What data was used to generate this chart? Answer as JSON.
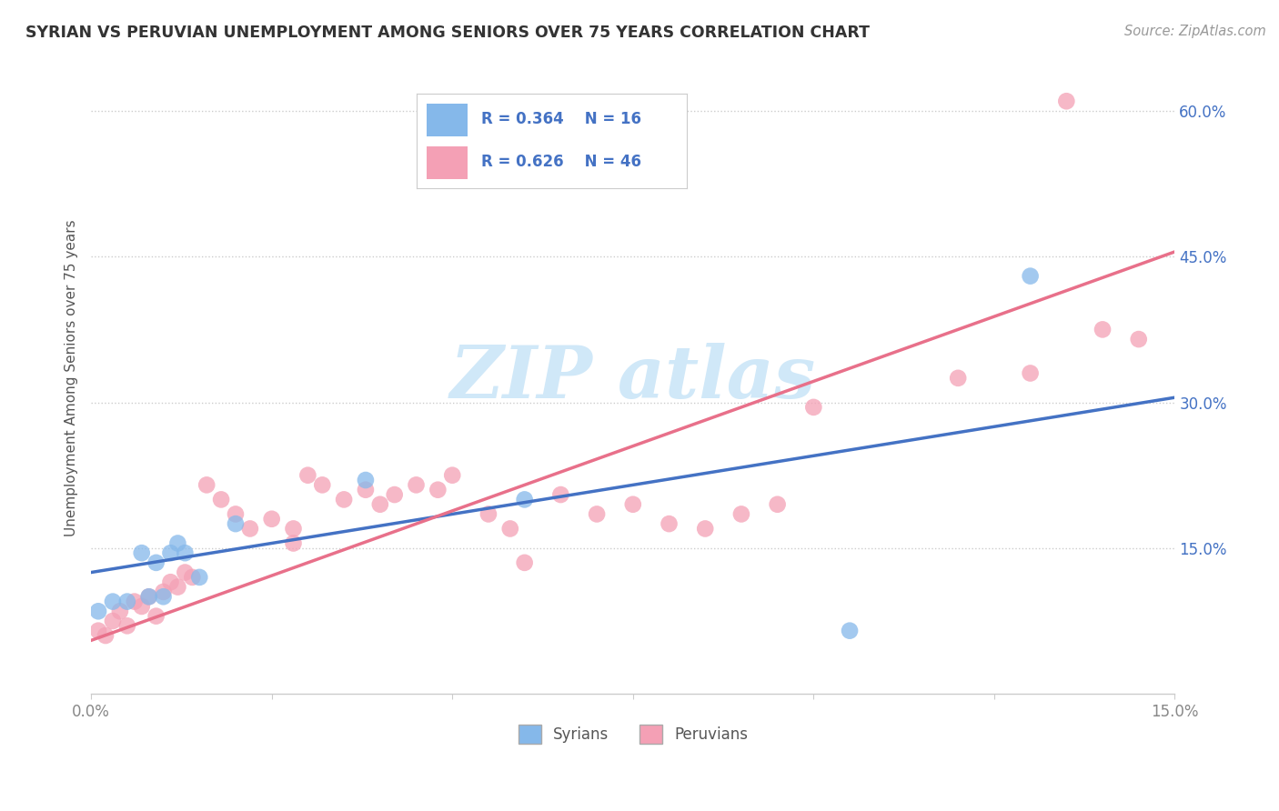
{
  "title": "SYRIAN VS PERUVIAN UNEMPLOYMENT AMONG SENIORS OVER 75 YEARS CORRELATION CHART",
  "source": "Source: ZipAtlas.com",
  "ylabel": "Unemployment Among Seniors over 75 years",
  "xlim": [
    0,
    0.15
  ],
  "ylim": [
    0.0,
    0.65
  ],
  "ytick_vals": [
    0.15,
    0.3,
    0.45,
    0.6
  ],
  "ytick_labels": [
    "15.0%",
    "30.0%",
    "45.0%",
    "60.0%"
  ],
  "xtick_vals": [
    0.0,
    0.025,
    0.05,
    0.075,
    0.1,
    0.125,
    0.15
  ],
  "xtick_labels": [
    "0.0%",
    "",
    "",
    "",
    "",
    "",
    "15.0%"
  ],
  "legend_text_color": "#4472C4",
  "syrian_color": "#85B8EA",
  "peruvian_color": "#F4A0B5",
  "syrian_line_color": "#4472C4",
  "peruvian_line_color": "#E8708A",
  "syrian_line_x0": 0.0,
  "syrian_line_y0": 0.125,
  "syrian_line_x1": 0.15,
  "syrian_line_y1": 0.305,
  "peruvian_line_x0": 0.0,
  "peruvian_line_y0": 0.055,
  "peruvian_line_x1": 0.15,
  "peruvian_line_y1": 0.455,
  "syrian_x": [
    0.001,
    0.003,
    0.005,
    0.007,
    0.008,
    0.009,
    0.01,
    0.011,
    0.012,
    0.013,
    0.015,
    0.02,
    0.038,
    0.06,
    0.105,
    0.13
  ],
  "syrian_y": [
    0.085,
    0.095,
    0.095,
    0.145,
    0.1,
    0.135,
    0.1,
    0.145,
    0.155,
    0.145,
    0.12,
    0.175,
    0.22,
    0.2,
    0.065,
    0.43
  ],
  "peruvian_x": [
    0.001,
    0.002,
    0.003,
    0.004,
    0.005,
    0.006,
    0.007,
    0.008,
    0.009,
    0.01,
    0.011,
    0.012,
    0.013,
    0.014,
    0.016,
    0.018,
    0.02,
    0.022,
    0.025,
    0.028,
    0.03,
    0.032,
    0.035,
    0.038,
    0.04,
    0.042,
    0.045,
    0.048,
    0.05,
    0.055,
    0.058,
    0.065,
    0.07,
    0.075,
    0.08,
    0.085,
    0.09,
    0.095,
    0.1,
    0.12,
    0.13,
    0.135,
    0.14,
    0.145,
    0.028,
    0.06
  ],
  "peruvian_y": [
    0.065,
    0.06,
    0.075,
    0.085,
    0.07,
    0.095,
    0.09,
    0.1,
    0.08,
    0.105,
    0.115,
    0.11,
    0.125,
    0.12,
    0.215,
    0.2,
    0.185,
    0.17,
    0.18,
    0.17,
    0.225,
    0.215,
    0.2,
    0.21,
    0.195,
    0.205,
    0.215,
    0.21,
    0.225,
    0.185,
    0.17,
    0.205,
    0.185,
    0.195,
    0.175,
    0.17,
    0.185,
    0.195,
    0.295,
    0.325,
    0.33,
    0.61,
    0.375,
    0.365,
    0.155,
    0.135
  ],
  "background_color": "#FFFFFF",
  "grid_color": "#CCCCCC",
  "watermark_color": "#D0E8F8"
}
